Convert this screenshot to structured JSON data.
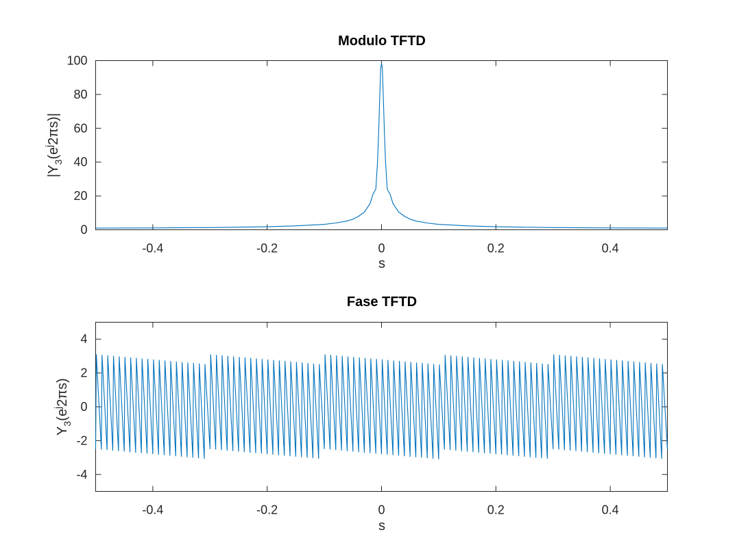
{
  "chart_data": [
    {
      "type": "line",
      "title": "Modulo TFTD",
      "xlabel": "s",
      "ylabel": "|Y_3(e^j2πs)|",
      "ylabel_parts": {
        "pre": "|Y",
        "sub": "3",
        "mid": "(e",
        "sup": "j",
        "post": "2πs)|"
      },
      "xlim": [
        -0.5,
        0.5
      ],
      "ylim": [
        0,
        100
      ],
      "xticks": [
        -0.4,
        -0.2,
        0,
        0.2,
        0.4
      ],
      "xtick_labels": [
        "-0.4",
        "-0.2",
        "0",
        "0.2",
        "0.4"
      ],
      "yticks": [
        0,
        20,
        40,
        60,
        80,
        100
      ],
      "ytick_labels": [
        "0",
        "20",
        "40",
        "60",
        "80",
        "100"
      ],
      "grid": false,
      "color": "#0072BD",
      "series": [
        {
          "x": [
            -0.5,
            -0.4,
            -0.3,
            -0.2,
            -0.15,
            -0.1,
            -0.08,
            -0.06,
            -0.05,
            -0.04,
            -0.03,
            -0.02,
            -0.015,
            -0.01,
            -0.007,
            -0.005,
            -0.003,
            -0.0015,
            0,
            0.0015,
            0.003,
            0.005,
            0.007,
            0.01,
            0.015,
            0.02,
            0.03,
            0.04,
            0.05,
            0.06,
            0.08,
            0.1,
            0.15,
            0.2,
            0.3,
            0.4,
            0.5
          ],
          "y": [
            1.0,
            1.1,
            1.3,
            1.8,
            2.3,
            3.2,
            4.0,
            5.2,
            6.3,
            8.0,
            10.5,
            15.5,
            21.0,
            24.0,
            40.0,
            58.0,
            80.0,
            95.0,
            98.5,
            95.0,
            80.0,
            58.0,
            40.0,
            24.0,
            21.0,
            15.5,
            10.5,
            8.0,
            6.3,
            5.2,
            4.0,
            3.2,
            2.3,
            1.8,
            1.3,
            1.1,
            1.0
          ]
        }
      ]
    },
    {
      "type": "line",
      "title": "Fase TFTD",
      "xlabel": "s",
      "ylabel": "Y_3(e^j2πs)",
      "ylabel_parts": {
        "pre": "Y",
        "sub": "3",
        "mid": "(e",
        "sup": "j",
        "post": "2πs)"
      },
      "xlim": [
        -0.5,
        0.5
      ],
      "ylim": [
        -5,
        5
      ],
      "xticks": [
        -0.4,
        -0.2,
        0,
        0.2,
        0.4
      ],
      "xtick_labels": [
        "-0.4",
        "-0.2",
        "0",
        "0.2",
        "0.4"
      ],
      "yticks": [
        -4,
        -2,
        0,
        2,
        4
      ],
      "ytick_labels": [
        "-4",
        "-2",
        "0",
        "2",
        "4"
      ],
      "grid": false,
      "color": "#0072BD",
      "series": [
        {
          "description_type": "sawtooth",
          "cycles": 100,
          "x_start": -0.5,
          "x_end": 0.5,
          "envelope_period": 0.2,
          "peak_max": 3.1,
          "peak_min": 2.5,
          "trough_min": -3.1,
          "trough_max": -2.5
        }
      ]
    }
  ]
}
